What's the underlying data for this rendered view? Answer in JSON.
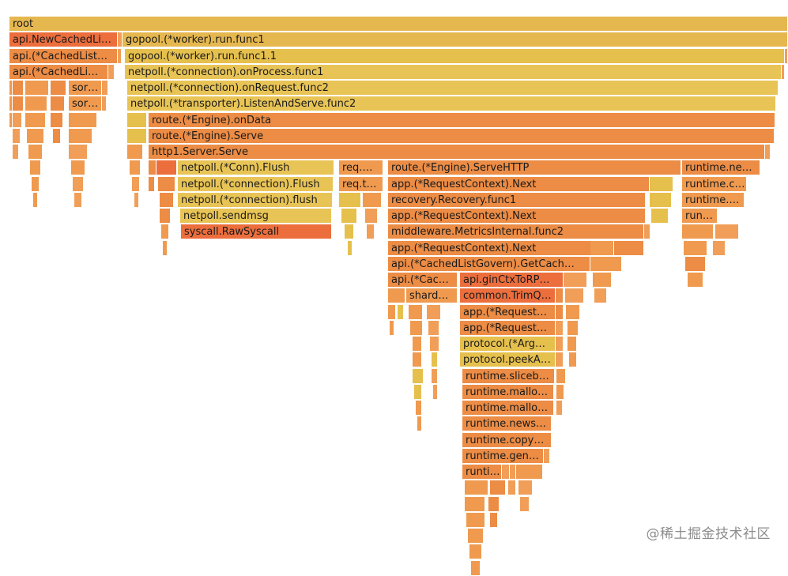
{
  "watermark": "@稀土掘金技术社区",
  "palette": {
    "y1": "#e6c04d",
    "y2": "#e5b74f",
    "y3": "#e8c456",
    "o1": "#ec8c45",
    "o2": "#ef9a4f",
    "o3": "#f09e58",
    "r1": "#ec6e3d"
  },
  "frames": [
    {
      "label": "root",
      "depth": 0,
      "start": 0,
      "width": 985,
      "color": "y2"
    },
    {
      "label": "api.NewCachedLi…",
      "depth": 1,
      "start": 0,
      "width": 137,
      "color": "r1"
    },
    {
      "label": "gopool.(*worker).run.func1",
      "depth": 1,
      "start": 143,
      "width": 842,
      "color": "y2"
    },
    {
      "label": "api.(*CachedList…",
      "depth": 2,
      "start": 0,
      "width": 137,
      "color": "o1"
    },
    {
      "label": "gopool.(*worker).run.func1.1",
      "depth": 2,
      "start": 146,
      "width": 835,
      "color": "y1"
    },
    {
      "label": "api.(*CachedLi…",
      "depth": 3,
      "start": 0,
      "width": 125,
      "color": "o1"
    },
    {
      "label": "netpoll.(*connection).onProcess.func1",
      "depth": 3,
      "start": 146,
      "width": 831,
      "color": "y3"
    },
    {
      "label": "sor…",
      "depth": 4,
      "start": 75,
      "width": 42,
      "color": "o2"
    },
    {
      "label": "netpoll.(*connection).onRequest.func2",
      "depth": 4,
      "start": 149,
      "width": 824,
      "color": "y3"
    },
    {
      "label": "sor…",
      "depth": 5,
      "start": 75,
      "width": 42,
      "color": "o2"
    },
    {
      "label": "netpoll.(*transporter).ListenAndServe.func2",
      "depth": 5,
      "start": 149,
      "width": 821,
      "color": "y3"
    },
    {
      "label": "route.(*Engine).onData",
      "depth": 6,
      "start": 176,
      "width": 793,
      "color": "o1"
    },
    {
      "label": "route.(*Engine).Serve",
      "depth": 7,
      "start": 176,
      "width": 792,
      "color": "o1"
    },
    {
      "label": "http1.Server.Serve",
      "depth": 8,
      "start": 176,
      "width": 780,
      "color": "o1"
    },
    {
      "label": "netpoll.(*Conn).Flush",
      "depth": 9,
      "start": 213,
      "width": 198,
      "color": "y3"
    },
    {
      "label": "req.…",
      "depth": 9,
      "start": 417,
      "width": 56,
      "color": "o2"
    },
    {
      "label": "route.(*Engine).ServeHTTP",
      "depth": 9,
      "start": 479,
      "width": 371,
      "color": "o1"
    },
    {
      "label": "runtime.ne…",
      "depth": 9,
      "start": 851,
      "width": 99,
      "color": "o1"
    },
    {
      "label": "netpoll.(*connection).Flush",
      "depth": 10,
      "start": 213,
      "width": 197,
      "color": "y3"
    },
    {
      "label": "req.t…",
      "depth": 10,
      "start": 417,
      "width": 56,
      "color": "o2"
    },
    {
      "label": "app.(*RequestContext).Next",
      "depth": 10,
      "start": 479,
      "width": 331,
      "color": "o1"
    },
    {
      "label": "runtime.c…",
      "depth": 10,
      "start": 851,
      "width": 82,
      "color": "o2"
    },
    {
      "label": "netpoll.(*connection).flush",
      "depth": 11,
      "start": 213,
      "width": 196,
      "color": "y3"
    },
    {
      "label": "recovery.Recovery.func1",
      "depth": 11,
      "start": 479,
      "width": 326,
      "color": "o1"
    },
    {
      "label": "runtime.…",
      "depth": 11,
      "start": 851,
      "width": 79,
      "color": "o2"
    },
    {
      "label": "netpoll.sendmsg",
      "depth": 12,
      "start": 216,
      "width": 192,
      "color": "y3"
    },
    {
      "label": "app.(*RequestContext).Next",
      "depth": 12,
      "start": 479,
      "width": 326,
      "color": "o1"
    },
    {
      "label": "run…",
      "depth": 12,
      "start": 851,
      "width": 45,
      "color": "o2"
    },
    {
      "label": "syscall.RawSyscall",
      "depth": 13,
      "start": 217,
      "width": 191,
      "color": "r1"
    },
    {
      "label": "middleware.MetricsInternal.func2",
      "depth": 13,
      "start": 479,
      "width": 324,
      "color": "o1"
    },
    {
      "label": "app.(*RequestContext).Next",
      "depth": 14,
      "start": 479,
      "width": 324,
      "color": "o1"
    },
    {
      "label": "api.(*CachedListGovern).GetCach…",
      "depth": 15,
      "start": 479,
      "width": 256,
      "color": "o1"
    },
    {
      "label": "api.(*Cac…",
      "depth": 16,
      "start": 479,
      "width": 88,
      "color": "o1"
    },
    {
      "label": "api.ginCtxToRP…",
      "depth": 16,
      "start": 570,
      "width": 131,
      "color": "r1"
    },
    {
      "label": "shard…",
      "depth": 17,
      "start": 502,
      "width": 65,
      "color": "o2"
    },
    {
      "label": "common.TrimQ…",
      "depth": 17,
      "start": 570,
      "width": 121,
      "color": "r1"
    },
    {
      "label": "app.(*Request…",
      "depth": 18,
      "start": 570,
      "width": 121,
      "color": "o1"
    },
    {
      "label": "app.(*Request…",
      "depth": 19,
      "start": 570,
      "width": 121,
      "color": "o1"
    },
    {
      "label": "protocol.(*Arg…",
      "depth": 20,
      "start": 570,
      "width": 121,
      "color": "y1"
    },
    {
      "label": "protocol.peekA…",
      "depth": 21,
      "start": 570,
      "width": 121,
      "color": "y1"
    },
    {
      "label": "runtime.sliceb…",
      "depth": 22,
      "start": 573,
      "width": 117,
      "color": "o1"
    },
    {
      "label": "runtime.mallo…",
      "depth": 23,
      "start": 573,
      "width": 116,
      "color": "o1"
    },
    {
      "label": "runtime.mallo…",
      "depth": 24,
      "start": 573,
      "width": 116,
      "color": "o1"
    },
    {
      "label": "runtime.news…",
      "depth": 25,
      "start": 573,
      "width": 113,
      "color": "o1"
    },
    {
      "label": "runtime.copy…",
      "depth": 26,
      "start": 573,
      "width": 113,
      "color": "o1"
    },
    {
      "label": "runtime.gen…",
      "depth": 27,
      "start": 573,
      "width": 103,
      "color": "o1"
    },
    {
      "label": "runti…",
      "depth": 28,
      "start": 573,
      "width": 50,
      "color": "o1"
    },
    {
      "label": "",
      "depth": 1,
      "start": 137,
      "width": 6,
      "color": "o3"
    },
    {
      "label": "",
      "depth": 2,
      "start": 137,
      "width": 5,
      "color": "o3"
    },
    {
      "label": "",
      "depth": 2,
      "start": 981,
      "width": 4,
      "color": "o3"
    },
    {
      "label": "",
      "depth": 3,
      "start": 125,
      "width": 8,
      "color": "o3"
    },
    {
      "label": "",
      "depth": 3,
      "start": 977,
      "width": 4,
      "color": "o3"
    },
    {
      "label": "",
      "depth": 4,
      "start": 0,
      "width": 4,
      "color": "o2"
    },
    {
      "label": "",
      "depth": 4,
      "start": 4,
      "width": 14,
      "color": "o1"
    },
    {
      "label": "",
      "depth": 4,
      "start": 20,
      "width": 30,
      "color": "o2"
    },
    {
      "label": "",
      "depth": 4,
      "start": 52,
      "width": 20,
      "color": "o1"
    },
    {
      "label": "",
      "depth": 4,
      "start": 117,
      "width": 8,
      "color": "o3"
    },
    {
      "label": "",
      "depth": 5,
      "start": 0,
      "width": 4,
      "color": "o2"
    },
    {
      "label": "",
      "depth": 5,
      "start": 4,
      "width": 14,
      "color": "o1"
    },
    {
      "label": "",
      "depth": 5,
      "start": 20,
      "width": 28,
      "color": "o2"
    },
    {
      "label": "",
      "depth": 5,
      "start": 52,
      "width": 18,
      "color": "o1"
    },
    {
      "label": "",
      "depth": 5,
      "start": 117,
      "width": 6,
      "color": "o3"
    },
    {
      "label": "",
      "depth": 6,
      "start": 0,
      "width": 4,
      "color": "o2"
    },
    {
      "label": "",
      "depth": 6,
      "start": 4,
      "width": 12,
      "color": "o3"
    },
    {
      "label": "",
      "depth": 6,
      "start": 20,
      "width": 26,
      "color": "o2"
    },
    {
      "label": "",
      "depth": 6,
      "start": 52,
      "width": 16,
      "color": "o1"
    },
    {
      "label": "",
      "depth": 6,
      "start": 75,
      "width": 36,
      "color": "o2"
    },
    {
      "label": "",
      "depth": 6,
      "start": 149,
      "width": 25,
      "color": "y1"
    },
    {
      "label": "",
      "depth": 7,
      "start": 4,
      "width": 10,
      "color": "o3"
    },
    {
      "label": "",
      "depth": 7,
      "start": 22,
      "width": 22,
      "color": "o2"
    },
    {
      "label": "",
      "depth": 7,
      "start": 55,
      "width": 10,
      "color": "o1"
    },
    {
      "label": "",
      "depth": 7,
      "start": 75,
      "width": 30,
      "color": "o2"
    },
    {
      "label": "",
      "depth": 7,
      "start": 149,
      "width": 25,
      "color": "y1"
    },
    {
      "label": "",
      "depth": 8,
      "start": 4,
      "width": 8,
      "color": "o3"
    },
    {
      "label": "",
      "depth": 8,
      "start": 24,
      "width": 18,
      "color": "o2"
    },
    {
      "label": "",
      "depth": 8,
      "start": 75,
      "width": 24,
      "color": "o3"
    },
    {
      "label": "",
      "depth": 8,
      "start": 149,
      "width": 20,
      "color": "o2"
    },
    {
      "label": "",
      "depth": 8,
      "start": 956,
      "width": 7,
      "color": "o3"
    },
    {
      "label": "",
      "depth": 9,
      "start": 26,
      "width": 14,
      "color": "o2"
    },
    {
      "label": "",
      "depth": 9,
      "start": 78,
      "width": 18,
      "color": "o2"
    },
    {
      "label": "",
      "depth": 9,
      "start": 152,
      "width": 14,
      "color": "o2"
    },
    {
      "label": "",
      "depth": 9,
      "start": 176,
      "width": 10,
      "color": "o1"
    },
    {
      "label": "",
      "depth": 9,
      "start": 186,
      "width": 26,
      "color": "r1"
    },
    {
      "label": "",
      "depth": 10,
      "start": 28,
      "width": 10,
      "color": "o2"
    },
    {
      "label": "",
      "depth": 10,
      "start": 80,
      "width": 14,
      "color": "o3"
    },
    {
      "label": "",
      "depth": 10,
      "start": 155,
      "width": 10,
      "color": "o3"
    },
    {
      "label": "",
      "depth": 10,
      "start": 176,
      "width": 8,
      "color": "o1"
    },
    {
      "label": "",
      "depth": 10,
      "start": 188,
      "width": 22,
      "color": "o1"
    },
    {
      "label": "",
      "depth": 11,
      "start": 30,
      "width": 6,
      "color": "o2"
    },
    {
      "label": "",
      "depth": 11,
      "start": 82,
      "width": 10,
      "color": "o3"
    },
    {
      "label": "",
      "depth": 11,
      "start": 158,
      "width": 6,
      "color": "o3"
    },
    {
      "label": "",
      "depth": 11,
      "start": 190,
      "width": 18,
      "color": "o1"
    },
    {
      "label": "",
      "depth": 11,
      "start": 417,
      "width": 28,
      "color": "y1"
    },
    {
      "label": "",
      "depth": 11,
      "start": 447,
      "width": 24,
      "color": "o2"
    },
    {
      "label": "",
      "depth": 12,
      "start": 190,
      "width": 14,
      "color": "o1"
    },
    {
      "label": "",
      "depth": 12,
      "start": 420,
      "width": 20,
      "color": "y1"
    },
    {
      "label": "",
      "depth": 12,
      "start": 450,
      "width": 16,
      "color": "o3"
    },
    {
      "label": "",
      "depth": 13,
      "start": 192,
      "width": 10,
      "color": "o2"
    },
    {
      "label": "",
      "depth": 13,
      "start": 424,
      "width": 12,
      "color": "y1"
    },
    {
      "label": "",
      "depth": 13,
      "start": 452,
      "width": 10,
      "color": "o3"
    },
    {
      "label": "",
      "depth": 14,
      "start": 194,
      "width": 6,
      "color": "o2"
    },
    {
      "label": "",
      "depth": 14,
      "start": 428,
      "width": 6,
      "color": "y1"
    },
    {
      "label": "",
      "depth": 10,
      "start": 810,
      "width": 30,
      "color": "y1"
    },
    {
      "label": "",
      "depth": 11,
      "start": 810,
      "width": 28,
      "color": "y1"
    },
    {
      "label": "",
      "depth": 12,
      "start": 812,
      "width": 22,
      "color": "y1"
    },
    {
      "label": "",
      "depth": 13,
      "start": 803,
      "width": 8,
      "color": "o3"
    },
    {
      "label": "",
      "depth": 13,
      "start": 851,
      "width": 40,
      "color": "o2"
    },
    {
      "label": "",
      "depth": 13,
      "start": 893,
      "width": 30,
      "color": "o3"
    },
    {
      "label": "",
      "depth": 14,
      "start": 735,
      "width": 30,
      "color": "o2"
    },
    {
      "label": "",
      "depth": 14,
      "start": 853,
      "width": 30,
      "color": "o2"
    },
    {
      "label": "",
      "depth": 14,
      "start": 890,
      "width": 16,
      "color": "o3"
    },
    {
      "label": "",
      "depth": 15,
      "start": 735,
      "width": 40,
      "color": "o2"
    },
    {
      "label": "",
      "depth": 15,
      "start": 855,
      "width": 26,
      "color": "o1"
    },
    {
      "label": "",
      "depth": 16,
      "start": 701,
      "width": 30,
      "color": "o3"
    },
    {
      "label": "",
      "depth": 16,
      "start": 738,
      "width": 24,
      "color": "o2"
    },
    {
      "label": "",
      "depth": 16,
      "start": 858,
      "width": 20,
      "color": "o2"
    },
    {
      "label": "",
      "depth": 17,
      "start": 479,
      "width": 22,
      "color": "o2"
    },
    {
      "label": "",
      "depth": 17,
      "start": 691,
      "width": 10,
      "color": "o1"
    },
    {
      "label": "",
      "depth": 17,
      "start": 703,
      "width": 24,
      "color": "o3"
    },
    {
      "label": "",
      "depth": 17,
      "start": 740,
      "width": 16,
      "color": "o3"
    },
    {
      "label": "",
      "depth": 18,
      "start": 479,
      "width": 10,
      "color": "o2"
    },
    {
      "label": "",
      "depth": 18,
      "start": 491,
      "width": 8,
      "color": "y1"
    },
    {
      "label": "",
      "depth": 18,
      "start": 505,
      "width": 18,
      "color": "o2"
    },
    {
      "label": "",
      "depth": 18,
      "start": 528,
      "width": 18,
      "color": "o3"
    },
    {
      "label": "",
      "depth": 18,
      "start": 691,
      "width": 10,
      "color": "o1"
    },
    {
      "label": "",
      "depth": 18,
      "start": 704,
      "width": 18,
      "color": "o2"
    },
    {
      "label": "",
      "depth": 19,
      "start": 481,
      "width": 6,
      "color": "o2"
    },
    {
      "label": "",
      "depth": 19,
      "start": 507,
      "width": 16,
      "color": "o2"
    },
    {
      "label": "",
      "depth": 19,
      "start": 530,
      "width": 14,
      "color": "o3"
    },
    {
      "label": "",
      "depth": 19,
      "start": 691,
      "width": 10,
      "color": "o3"
    },
    {
      "label": "",
      "depth": 19,
      "start": 706,
      "width": 14,
      "color": "o2"
    },
    {
      "label": "",
      "depth": 20,
      "start": 510,
      "width": 12,
      "color": "o2"
    },
    {
      "label": "",
      "depth": 20,
      "start": 532,
      "width": 12,
      "color": "o3"
    },
    {
      "label": "",
      "depth": 20,
      "start": 691,
      "width": 10,
      "color": "o3"
    },
    {
      "label": "",
      "depth": 20,
      "start": 706,
      "width": 12,
      "color": "o2"
    },
    {
      "label": "",
      "depth": 21,
      "start": 510,
      "width": 12,
      "color": "o2"
    },
    {
      "label": "",
      "depth": 21,
      "start": 534,
      "width": 8,
      "color": "y1"
    },
    {
      "label": "",
      "depth": 21,
      "start": 691,
      "width": 10,
      "color": "o3"
    },
    {
      "label": "",
      "depth": 21,
      "start": 708,
      "width": 10,
      "color": "o2"
    },
    {
      "label": "",
      "depth": 22,
      "start": 510,
      "width": 14,
      "color": "y1"
    },
    {
      "label": "",
      "depth": 22,
      "start": 534,
      "width": 8,
      "color": "o3"
    },
    {
      "label": "",
      "depth": 22,
      "start": 692,
      "width": 12,
      "color": "o2"
    },
    {
      "label": "",
      "depth": 23,
      "start": 512,
      "width": 10,
      "color": "y1"
    },
    {
      "label": "",
      "depth": 23,
      "start": 536,
      "width": 6,
      "color": "o3"
    },
    {
      "label": "",
      "depth": 23,
      "start": 692,
      "width": 10,
      "color": "o2"
    },
    {
      "label": "",
      "depth": 24,
      "start": 514,
      "width": 8,
      "color": "o2"
    },
    {
      "label": "",
      "depth": 24,
      "start": 692,
      "width": 8,
      "color": "o3"
    },
    {
      "label": "",
      "depth": 25,
      "start": 516,
      "width": 6,
      "color": "o2"
    },
    {
      "label": "",
      "depth": 27,
      "start": 676,
      "width": 8,
      "color": "o3"
    },
    {
      "label": "",
      "depth": 28,
      "start": 623,
      "width": 10,
      "color": "o3"
    },
    {
      "label": "",
      "depth": 28,
      "start": 633,
      "width": 8,
      "color": "o3"
    },
    {
      "label": "",
      "depth": 28,
      "start": 641,
      "width": 34,
      "color": "o2"
    },
    {
      "label": "",
      "depth": 29,
      "start": 576,
      "width": 30,
      "color": "o2"
    },
    {
      "label": "",
      "depth": 29,
      "start": 608,
      "width": 20,
      "color": "o1"
    },
    {
      "label": "",
      "depth": 29,
      "start": 631,
      "width": 10,
      "color": "o3"
    },
    {
      "label": "",
      "depth": 29,
      "start": 644,
      "width": 18,
      "color": "o3"
    },
    {
      "label": "",
      "depth": 30,
      "start": 576,
      "width": 26,
      "color": "o2"
    },
    {
      "label": "",
      "depth": 30,
      "start": 606,
      "width": 14,
      "color": "o1"
    },
    {
      "label": "",
      "depth": 30,
      "start": 646,
      "width": 12,
      "color": "o3"
    },
    {
      "label": "",
      "depth": 31,
      "start": 578,
      "width": 24,
      "color": "o2"
    },
    {
      "label": "",
      "depth": 31,
      "start": 608,
      "width": 10,
      "color": "o1"
    },
    {
      "label": "",
      "depth": 32,
      "start": 580,
      "width": 20,
      "color": "o2"
    },
    {
      "label": "",
      "depth": 33,
      "start": 582,
      "width": 16,
      "color": "o2"
    },
    {
      "label": "",
      "depth": 34,
      "start": 584,
      "width": 12,
      "color": "o2"
    }
  ]
}
